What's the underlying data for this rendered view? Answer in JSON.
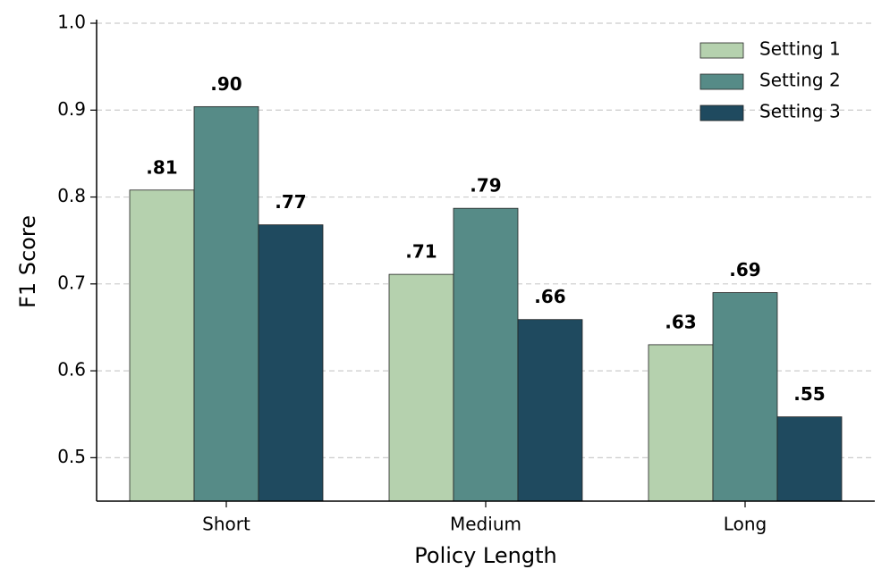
{
  "chart_data": {
    "type": "bar",
    "x_label": "Policy Length",
    "y_label": "F1 Score",
    "categories": [
      "Short",
      "Medium",
      "Long"
    ],
    "series": [
      {
        "name": "Setting 1",
        "color": "#b5d1ae",
        "values": [
          0.808,
          0.711,
          0.63
        ],
        "value_labels": [
          ".81",
          ".71",
          ".63"
        ]
      },
      {
        "name": "Setting 2",
        "color": "#568b87",
        "values": [
          0.904,
          0.787,
          0.69
        ],
        "value_labels": [
          ".90",
          ".79",
          ".69"
        ]
      },
      {
        "name": "Setting 3",
        "color": "#1f4a5f",
        "values": [
          0.768,
          0.659,
          0.547
        ],
        "value_labels": [
          ".77",
          ".66",
          ".55"
        ]
      }
    ],
    "ylim": [
      0.45,
      1.0
    ],
    "yticks": [
      0.5,
      0.6,
      0.7,
      0.8,
      0.9,
      {
        "value": 1,
        "label": "1.0"
      }
    ],
    "grid": true,
    "legend": "upper right"
  }
}
